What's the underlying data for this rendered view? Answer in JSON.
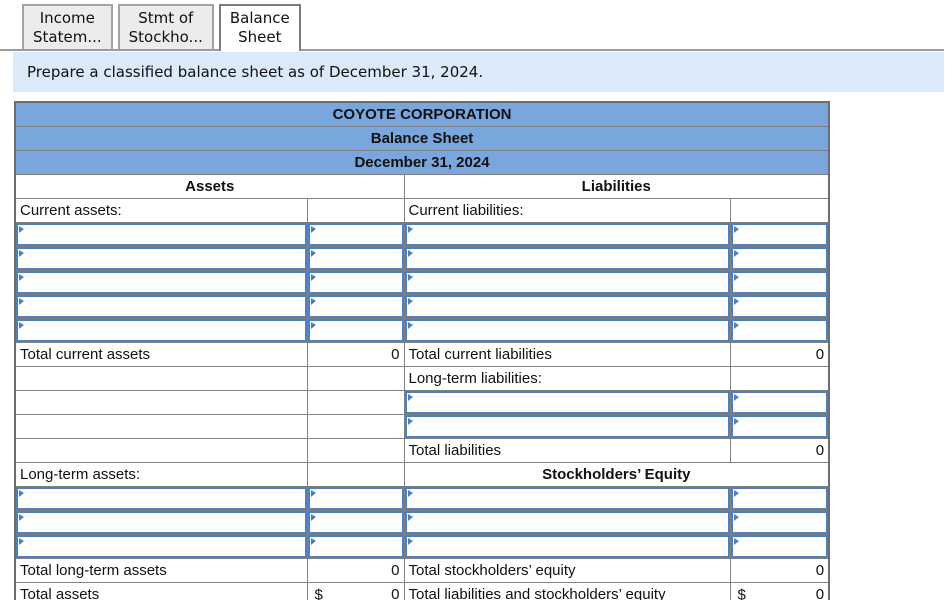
{
  "tabs": [
    {
      "line1": "Income",
      "line2": "Statem...",
      "active": false
    },
    {
      "line1": "Stmt of",
      "line2": "Stockho...",
      "active": false
    },
    {
      "line1": "Balance",
      "line2": "Sheet",
      "active": true
    }
  ],
  "instruction": "Prepare a classified balance sheet as of December 31, 2024.",
  "colors": {
    "header_blue": "#79a7dd",
    "instruction_blue": "#dbeaf8",
    "editable_border_blue": "#4e80bc",
    "grid_gray": "#808080"
  },
  "statement": {
    "title": "COYOTE CORPORATION",
    "subtitle": "Balance Sheet",
    "date": "December 31, 2024",
    "left_header": "Assets",
    "right_header": "Liabilities",
    "rows": [
      {
        "cells": [
          {
            "t": "label",
            "v": "Current assets:"
          },
          {
            "t": "empty"
          },
          {
            "t": "label",
            "v": "Current liabilities:"
          },
          {
            "t": "empty"
          }
        ]
      },
      {
        "cells": [
          {
            "t": "input"
          },
          {
            "t": "input"
          },
          {
            "t": "input"
          },
          {
            "t": "input"
          }
        ]
      },
      {
        "cells": [
          {
            "t": "input"
          },
          {
            "t": "input"
          },
          {
            "t": "input"
          },
          {
            "t": "input"
          }
        ]
      },
      {
        "cells": [
          {
            "t": "input"
          },
          {
            "t": "input"
          },
          {
            "t": "input"
          },
          {
            "t": "input"
          }
        ]
      },
      {
        "cells": [
          {
            "t": "input"
          },
          {
            "t": "input"
          },
          {
            "t": "input"
          },
          {
            "t": "input"
          }
        ]
      },
      {
        "cells": [
          {
            "t": "input"
          },
          {
            "t": "input"
          },
          {
            "t": "input"
          },
          {
            "t": "input"
          }
        ]
      },
      {
        "cells": [
          {
            "t": "tlabel",
            "v": "Total current assets",
            "indent": 2
          },
          {
            "t": "total",
            "v": "0"
          },
          {
            "t": "tlabel",
            "v": "Total current liabilities",
            "indent": 2
          },
          {
            "t": "total",
            "v": "0"
          }
        ]
      },
      {
        "cells": [
          {
            "t": "empty"
          },
          {
            "t": "empty"
          },
          {
            "t": "label",
            "v": "Long-term liabilities:"
          },
          {
            "t": "empty"
          }
        ]
      },
      {
        "cells": [
          {
            "t": "empty"
          },
          {
            "t": "empty"
          },
          {
            "t": "input"
          },
          {
            "t": "input"
          }
        ]
      },
      {
        "cells": [
          {
            "t": "empty"
          },
          {
            "t": "empty"
          },
          {
            "t": "input"
          },
          {
            "t": "input"
          }
        ]
      },
      {
        "cells": [
          {
            "t": "empty"
          },
          {
            "t": "empty"
          },
          {
            "t": "tlabel",
            "v": "Total liabilities",
            "indent": 1
          },
          {
            "t": "total",
            "v": "0"
          }
        ]
      },
      {
        "cells": [
          {
            "t": "label",
            "v": "Long-term assets:"
          },
          {
            "t": "empty"
          },
          {
            "t": "header2",
            "v": "Stockholders’ Equity"
          }
        ]
      },
      {
        "cells": [
          {
            "t": "input"
          },
          {
            "t": "input"
          },
          {
            "t": "input"
          },
          {
            "t": "input"
          }
        ]
      },
      {
        "cells": [
          {
            "t": "input"
          },
          {
            "t": "input"
          },
          {
            "t": "input"
          },
          {
            "t": "input"
          }
        ]
      },
      {
        "cells": [
          {
            "t": "input"
          },
          {
            "t": "input"
          },
          {
            "t": "input"
          },
          {
            "t": "input"
          }
        ]
      },
      {
        "cells": [
          {
            "t": "tlabel",
            "v": "Total long-term assets",
            "indent": 1
          },
          {
            "t": "total",
            "v": "0"
          },
          {
            "t": "tlabel",
            "v": "Total stockholders’ equity",
            "indent": 1
          },
          {
            "t": "total",
            "v": "0"
          }
        ]
      },
      {
        "cells": [
          {
            "t": "label",
            "v": "Total assets"
          },
          {
            "t": "grand",
            "cur": "$",
            "v": "0"
          },
          {
            "t": "label",
            "v": "Total liabilities and stockholders’ equity"
          },
          {
            "t": "grand",
            "cur": "$",
            "v": "0"
          }
        ]
      }
    ]
  }
}
